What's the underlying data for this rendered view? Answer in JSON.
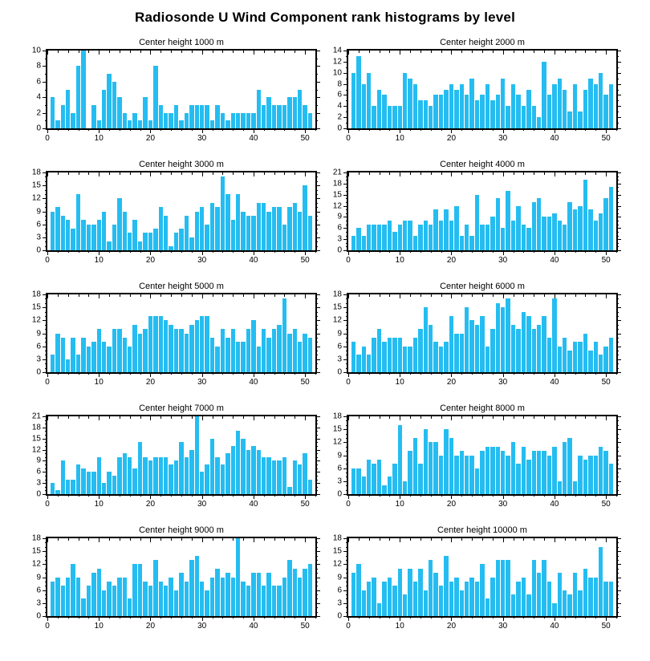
{
  "page_title": "Radiosonde U Wind Component rank histograms by level",
  "colors": {
    "bar": "#25BDF1",
    "axis": "#000000",
    "background": "#FFFFFF"
  },
  "axes_common": {
    "xticks_labeled": [
      0,
      10,
      20,
      30,
      40,
      50
    ],
    "x_minor_step": 2,
    "xlim": [
      0,
      52
    ],
    "grid": false,
    "legend": "none"
  },
  "chart_data": [
    {
      "type": "bar",
      "title": "Center height 1000 m",
      "xlabel": "",
      "ylabel": "",
      "ylim": [
        0,
        10
      ],
      "ytick_step": 2,
      "x": "rank 1..51",
      "values": [
        4,
        1,
        3,
        5,
        2,
        8,
        10,
        0,
        3,
        1,
        5,
        7,
        6,
        4,
        2,
        1,
        2,
        1,
        4,
        1,
        8,
        3,
        2,
        2,
        3,
        1,
        2,
        3,
        3,
        3,
        3,
        1,
        3,
        2,
        1,
        2,
        2,
        2,
        2,
        2,
        5,
        3,
        4,
        3,
        3,
        3,
        4,
        4,
        5,
        3,
        2
      ]
    },
    {
      "type": "bar",
      "title": "Center height 2000 m",
      "xlabel": "",
      "ylabel": "",
      "ylim": [
        0,
        14
      ],
      "ytick_step": 2,
      "x": "rank 1..51",
      "values": [
        10,
        13,
        8,
        10,
        4,
        7,
        6,
        4,
        4,
        4,
        10,
        9,
        8,
        5,
        5,
        4,
        6,
        6,
        7,
        8,
        7,
        8,
        6,
        9,
        5,
        6,
        8,
        5,
        6,
        9,
        4,
        8,
        6,
        4,
        7,
        4,
        2,
        12,
        6,
        8,
        9,
        7,
        3,
        8,
        3,
        7,
        9,
        8,
        10,
        6,
        8
      ]
    },
    {
      "type": "bar",
      "title": "Center height 3000 m",
      "xlabel": "",
      "ylabel": "",
      "ylim": [
        0,
        18
      ],
      "ytick_step": 3,
      "x": "rank 1..51",
      "values": [
        9,
        10,
        8,
        7,
        5,
        13,
        7,
        6,
        6,
        7,
        9,
        2,
        6,
        12,
        9,
        4,
        7,
        2,
        4,
        4,
        5,
        10,
        8,
        1,
        4,
        5,
        8,
        3,
        9,
        10,
        6,
        11,
        10,
        17,
        13,
        7,
        13,
        9,
        8,
        8,
        11,
        11,
        9,
        10,
        10,
        6,
        10,
        11,
        9,
        15,
        8
      ]
    },
    {
      "type": "bar",
      "title": "Center height 4000 m",
      "xlabel": "",
      "ylabel": "",
      "ylim": [
        0,
        21
      ],
      "ytick_step": 3,
      "x": "rank 1..51",
      "values": [
        4,
        6,
        4,
        7,
        7,
        7,
        7,
        8,
        5,
        7,
        8,
        8,
        4,
        7,
        8,
        7,
        11,
        8,
        11,
        8,
        12,
        4,
        7,
        4,
        15,
        7,
        7,
        9,
        14,
        6,
        16,
        8,
        12,
        7,
        6,
        13,
        14,
        9,
        9,
        10,
        8,
        7,
        13,
        11,
        12,
        19,
        11,
        8,
        10,
        14,
        17
      ]
    },
    {
      "type": "bar",
      "title": "Center height 5000 m",
      "xlabel": "",
      "ylabel": "",
      "ylim": [
        0,
        18
      ],
      "ytick_step": 3,
      "x": "rank 1..51",
      "values": [
        4,
        9,
        8,
        3,
        8,
        4,
        8,
        6,
        7,
        10,
        7,
        6,
        10,
        10,
        8,
        6,
        11,
        9,
        10,
        13,
        13,
        13,
        12,
        11,
        10,
        10,
        9,
        11,
        12,
        13,
        13,
        8,
        6,
        10,
        8,
        10,
        7,
        7,
        10,
        12,
        6,
        10,
        8,
        10,
        11,
        17,
        9,
        10,
        7,
        9,
        8
      ]
    },
    {
      "type": "bar",
      "title": "Center height 6000 m",
      "xlabel": "",
      "ylabel": "",
      "ylim": [
        0,
        18
      ],
      "ytick_step": 3,
      "x": "rank 1..51",
      "values": [
        7,
        4,
        6,
        4,
        8,
        10,
        7,
        8,
        8,
        8,
        6,
        6,
        8,
        10,
        15,
        11,
        7,
        6,
        7,
        13,
        9,
        9,
        15,
        12,
        11,
        13,
        6,
        10,
        16,
        15,
        17,
        11,
        10,
        14,
        13,
        10,
        11,
        13,
        8,
        17,
        6,
        8,
        5,
        7,
        7,
        9,
        5,
        7,
        4,
        6,
        8
      ]
    },
    {
      "type": "bar",
      "title": "Center height 7000 m",
      "xlabel": "",
      "ylabel": "",
      "ylim": [
        0,
        21
      ],
      "ytick_step": 3,
      "x": "rank 1..51",
      "values": [
        3,
        1,
        9,
        4,
        4,
        8,
        7,
        6,
        6,
        10,
        3,
        6,
        5,
        10,
        11,
        10,
        7,
        14,
        10,
        9,
        10,
        10,
        10,
        8,
        9,
        14,
        10,
        12,
        21,
        6,
        8,
        15,
        10,
        8,
        11,
        13,
        17,
        15,
        12,
        13,
        12,
        10,
        10,
        9,
        9,
        10,
        2,
        9,
        8,
        11,
        4
      ]
    },
    {
      "type": "bar",
      "title": "Center height 8000 m",
      "xlabel": "",
      "ylabel": "",
      "ylim": [
        0,
        18
      ],
      "ytick_step": 3,
      "x": "rank 1..51",
      "values": [
        6,
        6,
        4,
        8,
        7,
        8,
        2,
        4,
        7,
        16,
        3,
        10,
        13,
        7,
        15,
        12,
        12,
        9,
        15,
        13,
        9,
        10,
        9,
        9,
        6,
        10,
        11,
        11,
        11,
        10,
        9,
        12,
        7,
        11,
        8,
        10,
        10,
        10,
        9,
        11,
        3,
        12,
        13,
        3,
        9,
        8,
        9,
        9,
        11,
        10,
        7
      ]
    },
    {
      "type": "bar",
      "title": "Center height 9000 m",
      "xlabel": "",
      "ylabel": "",
      "ylim": [
        0,
        18
      ],
      "ytick_step": 3,
      "x": "rank 1..51",
      "values": [
        8,
        9,
        7,
        9,
        12,
        9,
        4,
        7,
        10,
        11,
        6,
        8,
        7,
        9,
        9,
        4,
        12,
        12,
        8,
        7,
        13,
        8,
        7,
        9,
        6,
        10,
        8,
        13,
        14,
        8,
        6,
        9,
        11,
        9,
        10,
        9,
        18,
        8,
        7,
        10,
        10,
        7,
        10,
        7,
        7,
        9,
        13,
        11,
        9,
        11,
        12
      ]
    },
    {
      "type": "bar",
      "title": "Center height 10000 m",
      "xlabel": "",
      "ylabel": "",
      "ylim": [
        0,
        18
      ],
      "ytick_step": 3,
      "x": "rank 1..51",
      "values": [
        10,
        12,
        6,
        8,
        9,
        3,
        8,
        9,
        7,
        11,
        5,
        11,
        8,
        11,
        6,
        13,
        10,
        7,
        14,
        8,
        9,
        6,
        8,
        9,
        8,
        12,
        4,
        9,
        13,
        13,
        13,
        5,
        8,
        9,
        5,
        13,
        10,
        13,
        8,
        3,
        10,
        6,
        5,
        10,
        6,
        11,
        9,
        9,
        16,
        8,
        8
      ]
    }
  ]
}
